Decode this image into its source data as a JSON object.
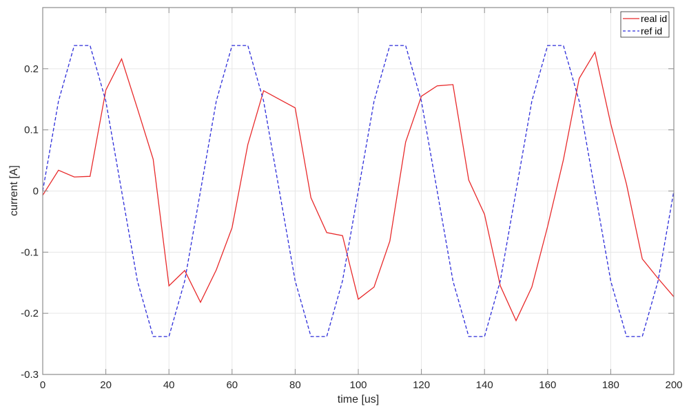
{
  "chart_data": {
    "type": "line",
    "title": "",
    "xlabel": "time [us]",
    "ylabel": "current [A]",
    "xlim": [
      0,
      200
    ],
    "ylim": [
      -0.3,
      0.3
    ],
    "xticks": [
      0,
      20,
      40,
      60,
      80,
      100,
      120,
      140,
      160,
      180,
      200
    ],
    "yticks": [
      -0.3,
      -0.2,
      -0.1,
      0,
      0.1,
      0.2
    ],
    "ytick_labels": [
      "-0.3",
      "-0.2",
      "-0.1",
      "0",
      "0.1",
      "0.2"
    ],
    "grid": true,
    "legend_position": "top-right",
    "x": [
      0,
      5,
      10,
      15,
      20,
      25,
      30,
      35,
      40,
      45,
      50,
      55,
      60,
      65,
      70,
      75,
      80,
      85,
      90,
      95,
      100,
      105,
      110,
      115,
      120,
      125,
      130,
      135,
      140,
      145,
      150,
      155,
      160,
      165,
      170,
      175,
      180,
      185,
      190,
      195,
      200
    ],
    "series": [
      {
        "name": "real id",
        "color": "#e8292a",
        "style": "solid",
        "values": [
          -0.007,
          0.034,
          0.023,
          0.024,
          0.165,
          0.216,
          0.135,
          0.052,
          -0.155,
          -0.13,
          -0.182,
          -0.129,
          -0.06,
          0.076,
          0.164,
          0.15,
          0.136,
          -0.011,
          -0.068,
          -0.073,
          -0.177,
          -0.157,
          -0.082,
          0.08,
          0.155,
          0.172,
          0.174,
          0.018,
          -0.038,
          -0.155,
          -0.212,
          -0.157,
          -0.058,
          0.051,
          0.184,
          0.227,
          0.11,
          0.011,
          -0.111,
          -0.143,
          -0.173
        ]
      },
      {
        "name": "ref id",
        "color": "#2b2bd9",
        "style": "dashed",
        "values": [
          0,
          0.147,
          0.238,
          0.238,
          0.147,
          0,
          -0.147,
          -0.238,
          -0.238,
          -0.147,
          0,
          0.147,
          0.238,
          0.238,
          0.147,
          0,
          -0.147,
          -0.238,
          -0.238,
          -0.147,
          0,
          0.147,
          0.238,
          0.238,
          0.147,
          0,
          -0.147,
          -0.238,
          -0.238,
          -0.147,
          0,
          0.147,
          0.238,
          0.238,
          0.147,
          0,
          -0.147,
          -0.238,
          -0.238,
          -0.147,
          0
        ]
      }
    ]
  }
}
